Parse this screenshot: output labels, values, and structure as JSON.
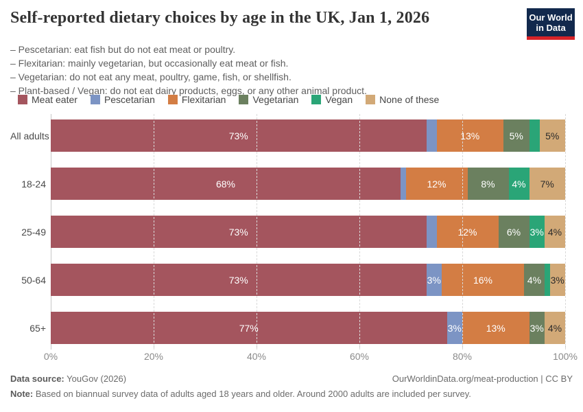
{
  "header": {
    "title": "Self-reported dietary choices by age in the UK, Jan 1, 2026",
    "logo": {
      "line1": "Our World",
      "line2": "in Data"
    },
    "subtitle_lines": [
      "– Pescetarian: eat fish but do not eat meat or poultry.",
      "– Flexitarian: mainly vegetarian, but occasionally eat meat or fish.",
      "– Vegetarian: do not eat any meat, poultry, game, fish, or shellfish.",
      "– Plant-based / Vegan: do not eat dairy products, eggs, or any other animal product."
    ]
  },
  "chart_data": {
    "type": "bar",
    "stacked": true,
    "orientation": "horizontal",
    "title": "Self-reported dietary choices by age in the UK, Jan 1, 2026",
    "categories": [
      "All adults",
      "18-24",
      "25-49",
      "50-64",
      "65+"
    ],
    "series": [
      {
        "name": "Meat eater",
        "color": "#a4555e",
        "values": [
          73,
          68,
          73,
          73,
          77
        ]
      },
      {
        "name": "Pescetarian",
        "color": "#7c94c4",
        "values": [
          2,
          1,
          2,
          3,
          3
        ]
      },
      {
        "name": "Flexitarian",
        "color": "#d37d44",
        "values": [
          13,
          12,
          12,
          16,
          13
        ]
      },
      {
        "name": "Vegetarian",
        "color": "#6b805f",
        "values": [
          5,
          8,
          6,
          4,
          3
        ]
      },
      {
        "name": "Vegan",
        "color": "#2aa577",
        "values": [
          2,
          4,
          3,
          1,
          0
        ]
      },
      {
        "name": "None of these",
        "color": "#d2a977",
        "values": [
          5,
          7,
          4,
          3,
          4
        ],
        "dark_label": true
      }
    ],
    "label_suffix": "%",
    "label_min": 3,
    "xlim": [
      0,
      100
    ],
    "xticks": [
      0,
      20,
      40,
      60,
      80,
      100
    ],
    "xtick_suffix": "%",
    "grid": "vertical-dashed",
    "legend_position": "top"
  },
  "footer": {
    "source_label": "Data source:",
    "source_value": "YouGov (2026)",
    "link": "OurWorldinData.org/meat-production | CC BY",
    "note_label": "Note:",
    "note_value": "Based on biannual survey data of adults aged 18 years and older. Around 2000 adults are included per survey."
  }
}
